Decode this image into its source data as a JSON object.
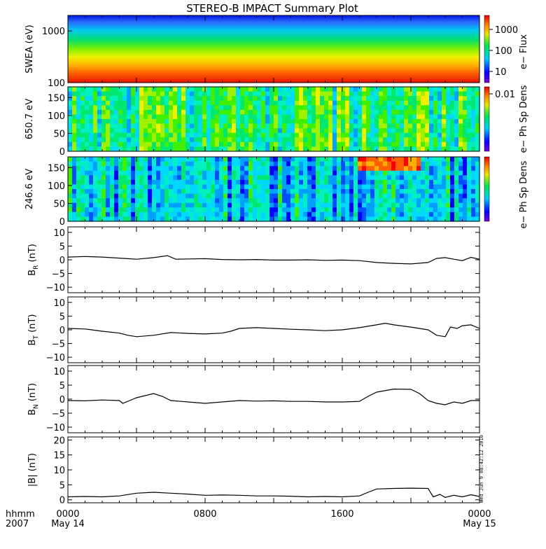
{
  "chart_data": {
    "title": "STEREO-B IMPACT Summary Plot",
    "x_axis": {
      "type": "time",
      "range_hours": [
        0,
        24
      ],
      "ticks": [
        {
          "hours": 0,
          "label": "0000",
          "sublabel": "May 14"
        },
        {
          "hours": 8,
          "label": "0800",
          "sublabel": ""
        },
        {
          "hours": 16,
          "label": "1600",
          "sublabel": ""
        },
        {
          "hours": 24,
          "label": "0000",
          "sublabel": "May 15"
        }
      ],
      "left_label": "hhmm",
      "left_sublabel": "2007"
    },
    "panels": [
      {
        "type": "heatmap",
        "ylabel": "SWEA (eV)",
        "y_scale": "log",
        "ylim": [
          100,
          2000
        ],
        "yticks": [
          "100",
          "1000"
        ],
        "colorbar_label": "e− Flux",
        "colorbar_scale": "log",
        "colorbar_ticks": [
          "10",
          "100",
          "1000"
        ]
      },
      {
        "type": "heatmap",
        "ylabel": "650.7 eV",
        "ylim": [
          0,
          180
        ],
        "yticks": [
          "0",
          "50",
          "100",
          "150"
        ],
        "colorbar_label": "e− Ph Sp Dens",
        "colorbar_ticks": [
          "0.01"
        ]
      },
      {
        "type": "heatmap",
        "ylabel": "246.6 eV",
        "ylim": [
          0,
          180
        ],
        "yticks": [
          "0",
          "50",
          "100",
          "150"
        ],
        "colorbar_label": "e− Ph Sp Dens",
        "colorbar_ticks": []
      },
      {
        "type": "line",
        "ylabel": "B",
        "ylabel_sub": "R",
        "ylabel_unit": " (nT)",
        "ylim": [
          -12,
          12
        ],
        "yticks": [
          "−10",
          "−5",
          "0",
          "5",
          "10"
        ],
        "x": [
          0,
          1,
          2,
          3,
          3.5,
          4,
          5,
          5.8,
          6.3,
          7,
          8,
          9,
          10,
          11,
          12,
          13,
          14,
          15,
          16,
          17,
          18,
          19,
          20,
          21,
          21.5,
          22,
          22.5,
          23,
          23.5,
          24
        ],
        "y": [
          1,
          1.2,
          1.0,
          0.6,
          0.4,
          0.2,
          0.8,
          1.5,
          0.2,
          0.3,
          0.4,
          0.1,
          0,
          0.1,
          -0.1,
          -0.1,
          0,
          -0.2,
          -0.1,
          -0.3,
          -1.0,
          -1.3,
          -1.5,
          -1.0,
          0.5,
          0.8,
          0.2,
          -0.3,
          0.9,
          0.2
        ]
      },
      {
        "type": "line",
        "ylabel": "B",
        "ylabel_sub": "T",
        "ylabel_unit": " (nT)",
        "ylim": [
          -12,
          12
        ],
        "yticks": [
          "−10",
          "−5",
          "0",
          "5",
          "10"
        ],
        "x": [
          0,
          1,
          2,
          3,
          3.5,
          4,
          5,
          6,
          7,
          8,
          9,
          9.5,
          10,
          11,
          12,
          13,
          14,
          15,
          16,
          17,
          18,
          18.5,
          19,
          20,
          21,
          21.5,
          22,
          22.3,
          22.7,
          23,
          23.5,
          24
        ],
        "y": [
          0.5,
          0.3,
          -0.5,
          -1.2,
          -2.0,
          -2.5,
          -2.0,
          -1.0,
          -1.3,
          -1.5,
          -1.2,
          -0.5,
          0.5,
          0.8,
          0.5,
          0.2,
          0,
          -0.3,
          0,
          0.8,
          1.8,
          2.4,
          1.8,
          1.0,
          0,
          -2.0,
          -2.5,
          1.0,
          0.5,
          1.5,
          1.8,
          0.5
        ]
      },
      {
        "type": "line",
        "ylabel": "B",
        "ylabel_sub": "N",
        "ylabel_unit": " (nT)",
        "ylim": [
          -12,
          12
        ],
        "yticks": [
          "−10",
          "−5",
          "0",
          "5",
          "10"
        ],
        "x": [
          0,
          1,
          2,
          3,
          3.2,
          3.6,
          4,
          5,
          5.5,
          6,
          7,
          8,
          9,
          10,
          11,
          12,
          13,
          14,
          15,
          16,
          17,
          17.5,
          18,
          19,
          20,
          20.5,
          21,
          21.5,
          22,
          22.5,
          23,
          23.5,
          24
        ],
        "y": [
          -0.5,
          -0.6,
          -0.3,
          -0.5,
          -1.5,
          -0.5,
          0.5,
          2.0,
          1.0,
          -0.5,
          -1.0,
          -1.5,
          -1.0,
          -0.5,
          -0.7,
          -0.6,
          -0.8,
          -0.8,
          -1.0,
          -1.0,
          -0.8,
          1.0,
          2.5,
          3.6,
          3.5,
          2.0,
          -0.5,
          -1.5,
          -2.0,
          -1.0,
          -1.5,
          -0.5,
          -0.5
        ]
      },
      {
        "type": "line",
        "ylabel": "|B| (nT)",
        "ylim": [
          -1,
          21
        ],
        "yticks": [
          "0",
          "5",
          "10",
          "15",
          "20"
        ],
        "x": [
          0,
          1,
          2,
          3,
          4,
          5,
          6,
          7,
          8,
          9,
          10,
          11,
          12,
          13,
          14,
          15,
          16,
          17,
          17.5,
          18,
          19,
          20,
          21,
          21.3,
          21.7,
          22,
          22.5,
          23,
          23.5,
          24
        ],
        "y": [
          1.0,
          1.1,
          1.0,
          1.3,
          2.2,
          2.5,
          2.2,
          1.9,
          1.5,
          1.6,
          1.5,
          1.3,
          1.3,
          1.2,
          1.0,
          1.1,
          1.0,
          1.3,
          2.5,
          3.6,
          3.8,
          3.9,
          3.8,
          1.0,
          1.8,
          0.8,
          1.5,
          1.0,
          1.7,
          1.1
        ]
      }
    ]
  },
  "footer": {
    "stamp": "Wed Jun 9 08:42:12 2010"
  }
}
